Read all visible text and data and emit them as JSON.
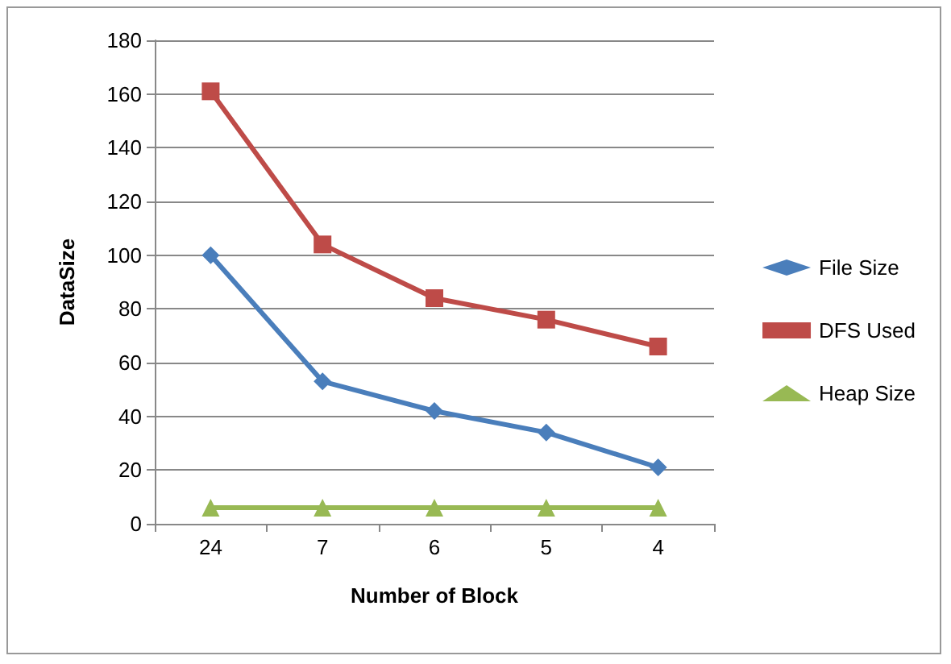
{
  "chart_data": {
    "type": "line",
    "xlabel": "Number of Block",
    "ylabel": "DataSize",
    "categories": [
      "24",
      "7",
      "6",
      "5",
      "4"
    ],
    "series": [
      {
        "name": "File Size",
        "color": "#4a7ebb",
        "marker": "diamond",
        "values": [
          100,
          53,
          42,
          34,
          21
        ]
      },
      {
        "name": "DFS Used",
        "color": "#be4b48",
        "marker": "square",
        "values": [
          161,
          104,
          84,
          76,
          66
        ]
      },
      {
        "name": "Heap Size",
        "color": "#98b954",
        "marker": "triangle",
        "values": [
          6,
          6,
          6,
          6,
          6
        ]
      }
    ],
    "ylim": [
      0,
      180
    ],
    "yticks": [
      0,
      20,
      40,
      60,
      80,
      100,
      120,
      140,
      160,
      180
    ],
    "grid": "y",
    "legend": "right"
  }
}
